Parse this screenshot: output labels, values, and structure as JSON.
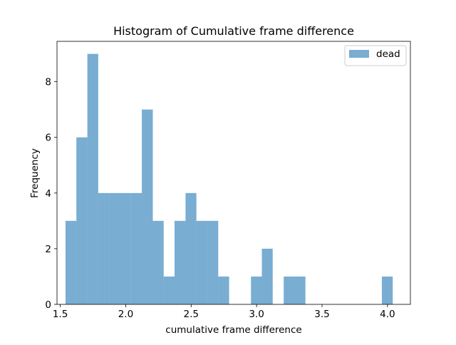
{
  "chart_data": {
    "type": "bar",
    "title": "Histogram of Cumulative frame difference",
    "xlabel": "cumulative frame difference",
    "ylabel": "Frequency",
    "xlim": [
      1.475,
      4.175
    ],
    "ylim": [
      0,
      9.45
    ],
    "xticks": [
      1.5,
      2.0,
      2.5,
      3.0,
      3.5,
      4.0
    ],
    "xtick_labels": [
      "1.5",
      "2.0",
      "2.5",
      "3.0",
      "3.5",
      "4.0"
    ],
    "yticks": [
      0,
      2,
      4,
      6,
      8
    ],
    "ytick_labels": [
      "0",
      "2",
      "4",
      "6",
      "8"
    ],
    "grid": false,
    "legend_position": "upper right",
    "series": [
      {
        "name": "dead",
        "color": "#1f77b4",
        "alpha": 0.6,
        "bin_edges": [
          1.54,
          1.623,
          1.707,
          1.79,
          1.873,
          1.957,
          2.04,
          2.123,
          2.207,
          2.29,
          2.373,
          2.457,
          2.54,
          2.623,
          2.707,
          2.79,
          2.873,
          2.957,
          3.04,
          3.123,
          3.207,
          3.29,
          3.373,
          3.457,
          3.54,
          3.623,
          3.707,
          3.79,
          3.873,
          3.957,
          4.04
        ],
        "values": [
          3,
          6,
          9,
          4,
          4,
          4,
          4,
          7,
          3,
          1,
          3,
          4,
          3,
          3,
          1,
          0,
          0,
          1,
          2,
          0,
          1,
          1,
          0,
          0,
          0,
          0,
          0,
          0,
          0,
          1
        ]
      }
    ]
  }
}
